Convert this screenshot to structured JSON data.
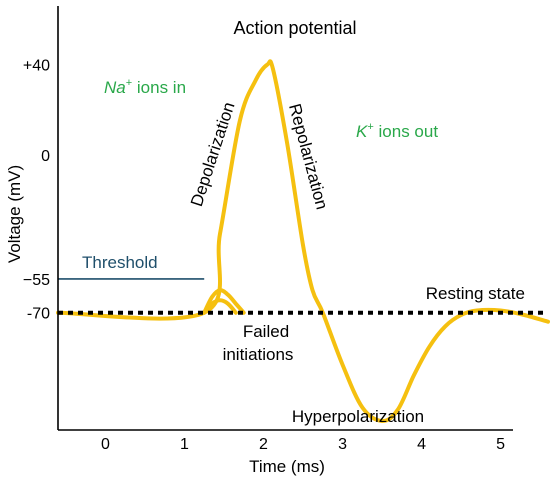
{
  "chart_data": {
    "type": "line",
    "title": "Action potential",
    "xlabel": "Time (ms)",
    "ylabel": "Voltage (mV)",
    "xticks": [
      0,
      1,
      2,
      3,
      4,
      5
    ],
    "yticks": [
      {
        "value": 40,
        "label": "+40"
      },
      {
        "value": 0,
        "label": "0"
      },
      {
        "value": -55,
        "label": "−55"
      },
      {
        "value": -70,
        "label": "-70"
      }
    ],
    "xlim": [
      -0.6,
      5.6
    ],
    "ylim": [
      -122,
      66
    ],
    "grid": false,
    "colors": {
      "curve": "#f5c010",
      "threshold": "#1f4f6b",
      "ions": "#2aa84a",
      "axis": "#000000"
    },
    "series": [
      {
        "x": [
          -0.6,
          1.25,
          1.45,
          1.7,
          1.9,
          2.05,
          2.12,
          2.3,
          2.5,
          2.62,
          2.75,
          3.0,
          3.25,
          3.5,
          3.7,
          3.9,
          4.1,
          4.3,
          4.5,
          4.7,
          5.0,
          5.3,
          5.6
        ],
        "y": [
          -70,
          -70,
          -35,
          15,
          33,
          40,
          38,
          5,
          -40,
          -60,
          -70,
          -93,
          -112,
          -118,
          -113,
          -98,
          -85,
          -76,
          -71,
          -69,
          -69,
          -71,
          -74
        ]
      },
      {
        "x": [
          1.25,
          1.35,
          1.45,
          1.55,
          1.65,
          1.75
        ],
        "y": [
          -70,
          -63,
          -60,
          -62,
          -66,
          -70
        ]
      },
      {
        "x": [
          1.25,
          1.35,
          1.45,
          1.55,
          1.65
        ],
        "y": [
          -70,
          -66,
          -64.5,
          -66,
          -70
        ]
      }
    ],
    "threshold": {
      "value": -55,
      "x_end": 1.25,
      "label": "Threshold"
    },
    "resting": {
      "value": -70,
      "label": "Resting state"
    },
    "annotations": {
      "na_ions": {
        "ion": "Na",
        "charge": "+",
        "text": " ions in"
      },
      "k_ions": {
        "ion": "K",
        "charge": "+",
        "text": " ions out"
      },
      "depolarization": "Depolarization",
      "repolarization": "Repolarization",
      "failed_line1": "Failed",
      "failed_line2": "initiations",
      "hyperpolarization": "Hyperpolarization"
    }
  }
}
